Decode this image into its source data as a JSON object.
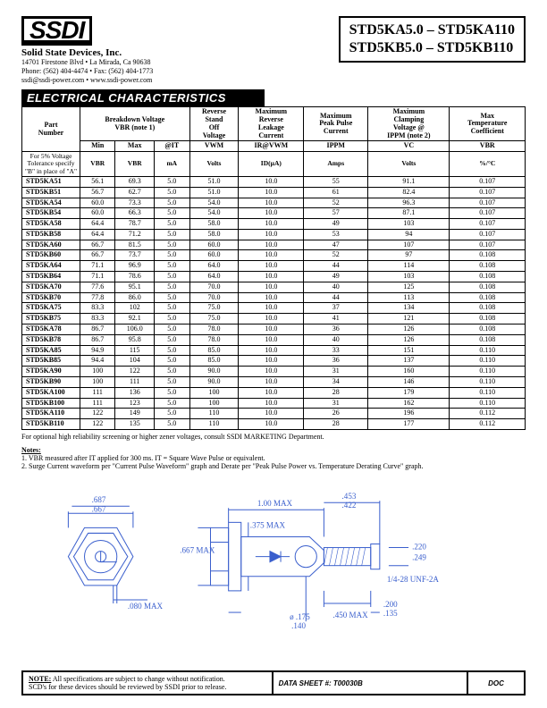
{
  "header": {
    "logo": "SSDI",
    "company": "Solid State Devices, Inc.",
    "addr1": "14701 Firestone Blvd • La Mirada, Ca 90638",
    "addr2": "Phone: (562) 404-4474 • Fax: (562) 404-1773",
    "addr3": "ssdi@ssdi-power.com • www.ssdi-power.com"
  },
  "part_box": {
    "line1": "STD5KA5.0 – STD5KA110",
    "line2": "STD5KB5.0 – STD5KB110"
  },
  "section_title": "ELECTRICAL CHARACTERISTICS",
  "columns": {
    "part": "Part\nNumber",
    "bv": "Breakdown Voltage\nVBR (note 1)",
    "rso": "Reverse\nStand\nOff\nVoltage",
    "leak": "Maximum\nReverse\nLeakage\nCurrent",
    "ppc": "Maximum\nPeak Pulse\nCurrent",
    "clamp": "Maximum\nClamping\nVoltage @\nIPPM (note 2)",
    "tc": "Max\nTemperature\nCoefficient"
  },
  "subcols": {
    "min": "Min",
    "max": "Max",
    "it": "@IT",
    "vwm": "VWM",
    "ir": "IR@VWM",
    "ippm": "IPPM",
    "vc": "VC",
    "vbr": "VBR"
  },
  "units": {
    "vbr": "VBR",
    "ma": "mA",
    "volts": "Volts",
    "id": "ID(µA)",
    "amps": "Amps",
    "pct": "%/°C"
  },
  "tol_note": "For 5% Voltage Tolerance specify \"B\" in place of \"A\"",
  "rows": [
    [
      "STD5KA51",
      "56.1",
      "69.3",
      "5.0",
      "51.0",
      "10.0",
      "55",
      "91.1",
      "0.107"
    ],
    [
      "STD5KB51",
      "56.7",
      "62.7",
      "5.0",
      "51.0",
      "10.0",
      "61",
      "82.4",
      "0.107"
    ],
    [
      "STD5KA54",
      "60.0",
      "73.3",
      "5.0",
      "54.0",
      "10.0",
      "52",
      "96.3",
      "0.107"
    ],
    [
      "STD5KB54",
      "60.0",
      "66.3",
      "5.0",
      "54.0",
      "10.0",
      "57",
      "87.1",
      "0.107"
    ],
    [
      "STD5KA58",
      "64.4",
      "78.7",
      "5.0",
      "58.0",
      "10.0",
      "49",
      "103",
      "0.107"
    ],
    [
      "STD5KB58",
      "64.4",
      "71.2",
      "5.0",
      "58.0",
      "10.0",
      "53",
      "94",
      "0.107"
    ],
    [
      "STD5KA60",
      "66.7",
      "81.5",
      "5.0",
      "60.0",
      "10.0",
      "47",
      "107",
      "0.107"
    ],
    [
      "STD5KB60",
      "66.7",
      "73.7",
      "5.0",
      "60.0",
      "10.0",
      "52",
      "97",
      "0.108"
    ],
    [
      "STD5KA64",
      "71.1",
      "96.9",
      "5.0",
      "64.0",
      "10.0",
      "44",
      "114",
      "0.108"
    ],
    [
      "STD5KB64",
      "71.1",
      "78.6",
      "5.0",
      "64.0",
      "10.0",
      "49",
      "103",
      "0.108"
    ],
    [
      "STD5KA70",
      "77.6",
      "95.1",
      "5.0",
      "70.0",
      "10.0",
      "40",
      "125",
      "0.108"
    ],
    [
      "STD5KB70",
      "77.8",
      "86.0",
      "5.0",
      "70.0",
      "10.0",
      "44",
      "113",
      "0.108"
    ],
    [
      "STD5KA75",
      "83.3",
      "102",
      "5.0",
      "75.0",
      "10.0",
      "37",
      "134",
      "0.108"
    ],
    [
      "STD5KB75",
      "83.3",
      "92.1",
      "5.0",
      "75.0",
      "10.0",
      "41",
      "121",
      "0.108"
    ],
    [
      "STD5KA78",
      "86.7",
      "106.0",
      "5.0",
      "78.0",
      "10.0",
      "36",
      "126",
      "0.108"
    ],
    [
      "STD5KB78",
      "86.7",
      "95.8",
      "5.0",
      "78.0",
      "10.0",
      "40",
      "126",
      "0.108"
    ],
    [
      "STD5KA85",
      "94.9",
      "115",
      "5.0",
      "85.0",
      "10.0",
      "33",
      "151",
      "0.110"
    ],
    [
      "STD5KB85",
      "94.4",
      "104",
      "5.0",
      "85.0",
      "10.0",
      "36",
      "137",
      "0.110"
    ],
    [
      "STD5KA90",
      "100",
      "122",
      "5.0",
      "90.0",
      "10.0",
      "31",
      "160",
      "0.110"
    ],
    [
      "STD5KB90",
      "100",
      "111",
      "5.0",
      "90.0",
      "10.0",
      "34",
      "146",
      "0.110"
    ],
    [
      "STD5KA100",
      "111",
      "136",
      "5.0",
      "100",
      "10.0",
      "28",
      "179",
      "0.110"
    ],
    [
      "STD5KB100",
      "111",
      "123",
      "5.0",
      "100",
      "10.0",
      "31",
      "162",
      "0.110"
    ],
    [
      "STD5KA110",
      "122",
      "149",
      "5.0",
      "110",
      "10.0",
      "26",
      "196",
      "0.112"
    ],
    [
      "STD5KB110",
      "122",
      "135",
      "5.0",
      "110",
      "10.0",
      "28",
      "177",
      "0.112"
    ]
  ],
  "foot_para": "For optional high reliability screening or higher zener voltages, consult SSDI MARKETING Department.",
  "notes_title": "Notes:",
  "note1": "1.  VBR measured after IT applied for 300 ms. IT = Square Wave Pulse or equivalent.",
  "note2": "2.  Surge Current waveform per \"Current Pulse Waveform\" graph and Derate per \"Peak Pulse Power vs. Temperature Derating Curve\" graph.",
  "diagram": {
    "d687": ".687",
    "d667": ".667",
    "d080": ".080 MAX",
    "d100": "1.00 MAX",
    "d453": ".453",
    "d422": ".422",
    "d220": ".220",
    "d249": ".249",
    "d667m": ".667\nMAX",
    "d375": ".375\nMAX",
    "thread": "1/4-28 UNF-2A",
    "d175": "ø .175",
    "d140": ".140",
    "d450": ".450\nMAX",
    "d200": ".200",
    "d135": ".135"
  },
  "bottom": {
    "note_label": "NOTE:",
    "note_text": "All specifications are subject to change without notification.\nSCD's for these devices should be reviewed by SSDI prior to release.",
    "ds": "DATA SHEET #: T00030B",
    "doc": "DOC"
  }
}
